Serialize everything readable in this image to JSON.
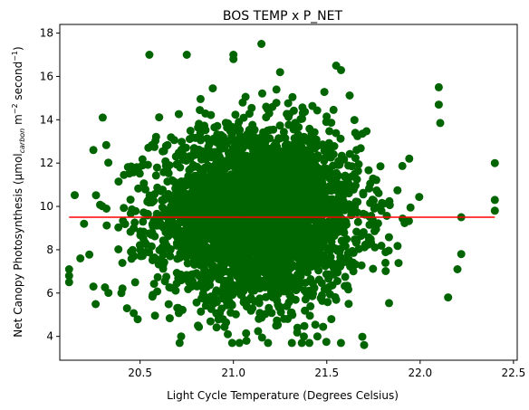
{
  "chart_data": {
    "type": "scatter",
    "title": "BOS TEMP x P_NET",
    "xlabel": "Light Cycle Temperature (Degrees Celsius)",
    "ylabel_parts": {
      "pre": "Net Canopy Photosynthesis (μmol",
      "sub": "carbon",
      "mid1": " m",
      "sup1": "−2",
      "mid2": " second",
      "sup2": "−1",
      "post": ")"
    },
    "xlim": [
      20.07,
      22.52
    ],
    "ylim": [
      2.9,
      18.4
    ],
    "x_ticks": [
      20.5,
      21.0,
      21.5,
      22.0,
      22.5
    ],
    "x_tick_labels": [
      "20.5",
      "21.0",
      "21.5",
      "22.0",
      "22.5"
    ],
    "y_ticks": [
      4,
      6,
      8,
      10,
      12,
      14,
      16,
      18
    ],
    "y_tick_labels": [
      "4",
      "6",
      "8",
      "10",
      "12",
      "14",
      "16",
      "18"
    ],
    "grid": false,
    "point_color": "#006400",
    "fit_color": "#ff0000",
    "fit_line": {
      "x": [
        20.12,
        22.4
      ],
      "y": [
        9.5,
        9.5
      ]
    },
    "distribution": {
      "x_center": 21.13,
      "x_spread": 0.27,
      "y_center": 9.6,
      "y_spread": 1.95,
      "count": 3500
    },
    "outlier_points": [
      {
        "x": 20.12,
        "y": 7.1
      },
      {
        "x": 20.12,
        "y": 6.8
      },
      {
        "x": 20.12,
        "y": 6.5
      },
      {
        "x": 20.18,
        "y": 7.6
      },
      {
        "x": 20.2,
        "y": 9.2
      },
      {
        "x": 20.25,
        "y": 12.6
      },
      {
        "x": 20.25,
        "y": 6.3
      },
      {
        "x": 20.3,
        "y": 14.1
      },
      {
        "x": 20.32,
        "y": 9.9
      },
      {
        "x": 20.4,
        "y": 6.0
      },
      {
        "x": 20.43,
        "y": 5.3
      },
      {
        "x": 20.55,
        "y": 17.0
      },
      {
        "x": 20.75,
        "y": 17.0
      },
      {
        "x": 20.72,
        "y": 4.0
      },
      {
        "x": 20.97,
        "y": 4.1
      },
      {
        "x": 21.0,
        "y": 17.0
      },
      {
        "x": 21.0,
        "y": 16.8
      },
      {
        "x": 21.15,
        "y": 17.5
      },
      {
        "x": 21.25,
        "y": 16.2
      },
      {
        "x": 21.07,
        "y": 3.8
      },
      {
        "x": 21.45,
        "y": 4.0
      },
      {
        "x": 21.7,
        "y": 3.6
      },
      {
        "x": 21.55,
        "y": 16.5
      },
      {
        "x": 22.1,
        "y": 15.5
      },
      {
        "x": 22.1,
        "y": 14.7
      },
      {
        "x": 22.15,
        "y": 5.8
      },
      {
        "x": 22.2,
        "y": 7.1
      },
      {
        "x": 22.22,
        "y": 7.8
      },
      {
        "x": 22.22,
        "y": 9.5
      },
      {
        "x": 22.4,
        "y": 12.0
      },
      {
        "x": 22.4,
        "y": 10.3
      },
      {
        "x": 22.4,
        "y": 9.8
      }
    ]
  }
}
